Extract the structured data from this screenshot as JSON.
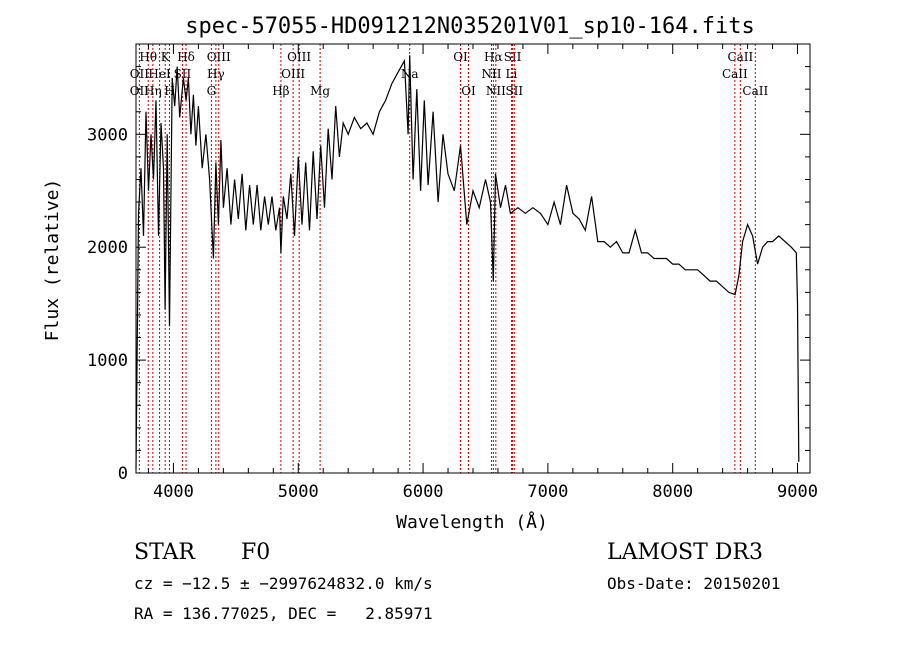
{
  "chart_data": {
    "type": "line",
    "title": "spec-57055-HD091212N035201V01_sp10-164.fits",
    "xlabel": "Wavelength (Å)",
    "ylabel": "Flux (relative)",
    "xlim": [
      3700,
      9100
    ],
    "ylim": [
      0,
      3800
    ],
    "xticks": [
      4000,
      5000,
      6000,
      7000,
      8000,
      9000
    ],
    "yticks": [
      0,
      1000,
      2000,
      3000
    ],
    "series": [
      {
        "x": [
          3700,
          3720,
          3740,
          3760,
          3780,
          3800,
          3820,
          3840,
          3860,
          3880,
          3900,
          3920,
          3933,
          3950,
          3968,
          3990,
          4010,
          4030,
          4050,
          4080,
          4101,
          4120,
          4140,
          4160,
          4180,
          4200,
          4230,
          4260,
          4290,
          4320,
          4340,
          4360,
          4380,
          4400,
          4430,
          4460,
          4490,
          4520,
          4550,
          4580,
          4610,
          4640,
          4670,
          4700,
          4730,
          4760,
          4790,
          4820,
          4850,
          4861,
          4880,
          4910,
          4940,
          4970,
          5000,
          5030,
          5060,
          5090,
          5120,
          5150,
          5180,
          5210,
          5240,
          5270,
          5300,
          5330,
          5360,
          5400,
          5450,
          5500,
          5550,
          5600,
          5650,
          5700,
          5750,
          5800,
          5850,
          5880,
          5893,
          5920,
          5950,
          5980,
          6010,
          6040,
          6080,
          6120,
          6160,
          6200,
          6250,
          6300,
          6350,
          6400,
          6450,
          6500,
          6540,
          6563,
          6580,
          6620,
          6660,
          6700,
          6760,
          6820,
          6880,
          6940,
          7000,
          7050,
          7100,
          7150,
          7200,
          7250,
          7300,
          7350,
          7400,
          7450,
          7500,
          7550,
          7600,
          7650,
          7700,
          7750,
          7800,
          7850,
          7900,
          7950,
          8000,
          8050,
          8100,
          8150,
          8200,
          8250,
          8300,
          8350,
          8400,
          8450,
          8500,
          8530,
          8560,
          8600,
          8640,
          8680,
          8720,
          8760,
          8800,
          8850,
          8900,
          8950,
          8990,
          9000,
          9010
        ],
        "values": [
          30,
          2300,
          2700,
          2100,
          3200,
          2500,
          3000,
          2600,
          3300,
          2100,
          3100,
          2700,
          1450,
          3000,
          1300,
          3500,
          3250,
          3600,
          3150,
          3500,
          3300,
          3500,
          3000,
          3350,
          2900,
          3250,
          2700,
          3000,
          2600,
          1900,
          2750,
          2200,
          2950,
          2350,
          2700,
          2200,
          2600,
          2250,
          2650,
          2150,
          2550,
          2200,
          2550,
          2150,
          2450,
          2200,
          2450,
          2150,
          2350,
          1950,
          2450,
          2250,
          2650,
          2100,
          2800,
          2200,
          2750,
          2150,
          2850,
          2250,
          2900,
          2350,
          3050,
          2600,
          3250,
          2800,
          3100,
          3000,
          3150,
          3050,
          3100,
          3000,
          3200,
          3300,
          3450,
          3550,
          3650,
          3000,
          3700,
          2600,
          3400,
          2500,
          3300,
          2550,
          3200,
          2400,
          3000,
          2650,
          2500,
          2900,
          2200,
          2500,
          2350,
          2600,
          2400,
          1700,
          2650,
          2350,
          2550,
          2300,
          2350,
          2300,
          2350,
          2300,
          2200,
          2400,
          2200,
          2550,
          2300,
          2250,
          2150,
          2450,
          2050,
          2050,
          2000,
          2050,
          1950,
          1950,
          2150,
          1950,
          1950,
          1900,
          1900,
          1900,
          1850,
          1850,
          1800,
          1800,
          1800,
          1750,
          1700,
          1700,
          1650,
          1600,
          1580,
          1750,
          2050,
          2200,
          2100,
          1850,
          2000,
          2050,
          2050,
          2100,
          2050,
          2000,
          1950,
          1500,
          100
        ]
      }
    ],
    "lines": [
      {
        "label": "Hθ",
        "x": 3798,
        "row": 1
      },
      {
        "label": "OII",
        "x": 3727,
        "row": 2
      },
      {
        "label": "OII",
        "x": 3727,
        "row": 3
      },
      {
        "label": "Hη",
        "x": 3835,
        "row": 3
      },
      {
        "label": "K",
        "x": 3934,
        "row": 1
      },
      {
        "label": "HeI",
        "x": 3889,
        "row": 2
      },
      {
        "label": "H",
        "x": 3968,
        "row": 3
      },
      {
        "label": "SII",
        "x": 4072,
        "row": 2
      },
      {
        "label": "Hδ",
        "x": 4101,
        "row": 1
      },
      {
        "label": "OIII",
        "x": 4363,
        "row": 1
      },
      {
        "label": "Hγ",
        "x": 4340,
        "row": 2
      },
      {
        "label": "G",
        "x": 4304,
        "row": 3
      },
      {
        "label": "Hβ",
        "x": 4861,
        "row": 3
      },
      {
        "label": "OIII",
        "x": 4959,
        "row": 2
      },
      {
        "label": "OIII",
        "x": 5007,
        "row": 1
      },
      {
        "label": "Mg",
        "x": 5175,
        "row": 3
      },
      {
        "label": "Na",
        "x": 5893,
        "row": 2
      },
      {
        "label": "OI",
        "x": 6300,
        "row": 1
      },
      {
        "label": "OI",
        "x": 6364,
        "row": 3
      },
      {
        "label": "Hα",
        "x": 6563,
        "row": 1
      },
      {
        "label": "NII",
        "x": 6548,
        "row": 2
      },
      {
        "label": "NII",
        "x": 6583,
        "row": 3
      },
      {
        "label": "SII",
        "x": 6717,
        "row": 1
      },
      {
        "label": "Li",
        "x": 6708,
        "row": 2
      },
      {
        "label": "SII",
        "x": 6731,
        "row": 3
      },
      {
        "label": "CaII",
        "x": 8542,
        "row": 1
      },
      {
        "label": "CaII",
        "x": 8498,
        "row": 2
      },
      {
        "label": "CaII",
        "x": 8662,
        "row": 3
      }
    ]
  },
  "info": {
    "object_class": "STAR",
    "subclass": "F0",
    "survey": "LAMOST DR3",
    "cz": "cz = −12.5 ± −2997624832.0 km/s",
    "obs_date": "Obs-Date: 20150201",
    "radec": "RA = 136.77025, DEC =   2.85971"
  }
}
